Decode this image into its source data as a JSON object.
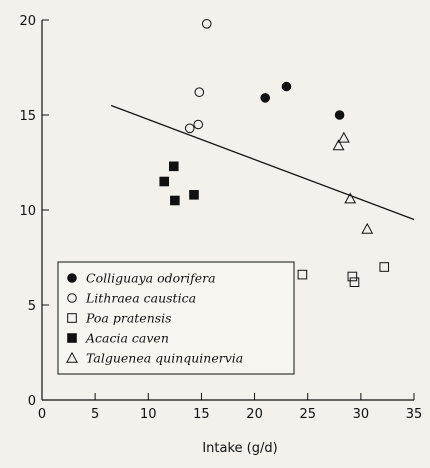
{
  "chart_data": {
    "type": "scatter",
    "title": "",
    "xlabel": "Intake (g/d)",
    "ylabel": "",
    "xlim": [
      0,
      35
    ],
    "ylim": [
      0,
      20
    ],
    "xticks": [
      0,
      5,
      10,
      15,
      20,
      25,
      30,
      35
    ],
    "yticks": [
      0,
      5,
      10,
      15,
      20
    ],
    "grid": false,
    "legend_position": "lower-left",
    "series": [
      {
        "name": "Colliguaya odorifera",
        "marker": "filled-circle",
        "points": [
          [
            21.0,
            15.9
          ],
          [
            23.0,
            16.5
          ],
          [
            28.0,
            15.0
          ]
        ]
      },
      {
        "name": "Lithraea caustica",
        "marker": "open-circle",
        "points": [
          [
            15.5,
            19.8
          ],
          [
            14.8,
            16.2
          ],
          [
            13.9,
            14.3
          ],
          [
            14.7,
            14.5
          ]
        ]
      },
      {
        "name": "Poa pratensis",
        "marker": "open-square",
        "points": [
          [
            24.5,
            6.6
          ],
          [
            29.2,
            6.5
          ],
          [
            29.4,
            6.2
          ],
          [
            32.2,
            7.0
          ]
        ]
      },
      {
        "name": "Acacia caven",
        "marker": "filled-square",
        "points": [
          [
            11.5,
            11.5
          ],
          [
            12.4,
            12.3
          ],
          [
            12.5,
            10.5
          ],
          [
            14.3,
            10.8
          ]
        ]
      },
      {
        "name": "Talguenea quinquinervia",
        "marker": "open-triangle",
        "points": [
          [
            27.9,
            13.4
          ],
          [
            28.4,
            13.8
          ],
          [
            29.0,
            10.6
          ],
          [
            30.6,
            9.0
          ]
        ]
      }
    ],
    "trend_line": {
      "from": [
        6.5,
        15.5
      ],
      "to": [
        35.0,
        9.5
      ]
    }
  }
}
